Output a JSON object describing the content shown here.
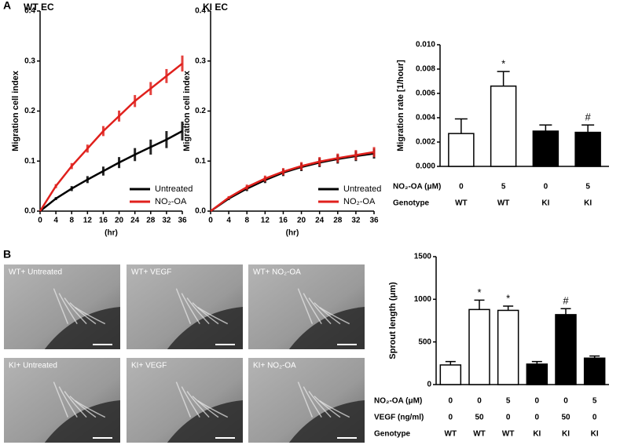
{
  "panel_labels": [
    "A",
    "B"
  ],
  "chart_data": [
    {
      "type": "line",
      "title": "WT EC",
      "ylabel": "Migration cell index",
      "xlabel": "(hr)",
      "x": [
        0,
        4,
        8,
        12,
        16,
        20,
        24,
        28,
        32,
        36
      ],
      "series": [
        {
          "name": "Untreated",
          "color": "#000000",
          "values": [
            0,
            0.025,
            0.045,
            0.063,
            0.08,
            0.097,
            0.113,
            0.128,
            0.143,
            0.16
          ],
          "errors": [
            0,
            0.003,
            0.005,
            0.007,
            0.009,
            0.011,
            0.013,
            0.015,
            0.017,
            0.019
          ]
        },
        {
          "name": "NO₂-OA",
          "color": "#e0201c",
          "values": [
            0,
            0.05,
            0.09,
            0.125,
            0.16,
            0.19,
            0.22,
            0.245,
            0.27,
            0.295
          ],
          "errors": [
            0,
            0.004,
            0.006,
            0.008,
            0.01,
            0.011,
            0.012,
            0.013,
            0.014,
            0.016
          ]
        }
      ],
      "xlim": [
        0,
        36
      ],
      "xticks": [
        0,
        4,
        8,
        12,
        16,
        20,
        24,
        28,
        32,
        36
      ],
      "ylim": [
        0,
        0.4
      ],
      "yticks": [
        {
          "value": 0,
          "label": "0.0"
        },
        0.1,
        0.2,
        0.3,
        0.4
      ],
      "legend": "lower right"
    },
    {
      "type": "line",
      "title": "KI EC",
      "ylabel": "Migration cell index",
      "xlabel": "(hr)",
      "x": [
        0,
        4,
        8,
        12,
        16,
        20,
        24,
        28,
        32,
        36
      ],
      "series": [
        {
          "name": "Untreated",
          "color": "#000000",
          "values": [
            0,
            0.025,
            0.045,
            0.062,
            0.077,
            0.088,
            0.097,
            0.104,
            0.11,
            0.115
          ],
          "errors": [
            0,
            0.003,
            0.005,
            0.006,
            0.007,
            0.008,
            0.009,
            0.009,
            0.01,
            0.01
          ]
        },
        {
          "name": "NO₂-OA",
          "color": "#e0201c",
          "values": [
            0,
            0.027,
            0.048,
            0.065,
            0.079,
            0.09,
            0.099,
            0.106,
            0.112,
            0.118
          ],
          "errors": [
            0,
            0.003,
            0.005,
            0.006,
            0.007,
            0.008,
            0.009,
            0.009,
            0.01,
            0.01
          ]
        }
      ],
      "xlim": [
        0,
        36
      ],
      "xticks": [
        0,
        4,
        8,
        12,
        16,
        20,
        24,
        28,
        32,
        36
      ],
      "ylim": [
        0,
        0.4
      ],
      "yticks": [
        {
          "value": 0,
          "label": "0.0"
        },
        0.1,
        0.2,
        0.3,
        0.4
      ],
      "legend": "lower right"
    },
    {
      "type": "bar",
      "ylabel": "Migration rate [1/hour]",
      "values": [
        0.0027,
        0.0066,
        0.0029,
        0.0028
      ],
      "errors": [
        0.0012,
        0.0012,
        0.0005,
        0.0006
      ],
      "colors": [
        "#ffffff",
        "#ffffff",
        "#000000",
        "#000000"
      ],
      "annotations": [
        null,
        "*",
        null,
        "#"
      ],
      "ylim": [
        0,
        0.01
      ],
      "yticks": [
        {
          "value": 0,
          "label": "0.000"
        },
        {
          "value": 0.002,
          "label": "0.002"
        },
        {
          "value": 0.004,
          "label": "0.004"
        },
        {
          "value": 0.006,
          "label": "0.006"
        },
        {
          "value": 0.008,
          "label": "0.008"
        },
        {
          "value": 0.01,
          "label": "0.010"
        }
      ],
      "table": [
        {
          "label": "NO₂-OA (μM)",
          "values": [
            0,
            5,
            0,
            5
          ]
        },
        {
          "label": "Genotype",
          "values": [
            "WT",
            "WT",
            "KI",
            "KI"
          ]
        }
      ]
    },
    {
      "type": "bar",
      "ylabel": "Sprout length (μm)",
      "values": [
        230,
        880,
        870,
        240,
        820,
        310
      ],
      "errors": [
        40,
        110,
        50,
        30,
        70,
        25
      ],
      "colors": [
        "#ffffff",
        "#ffffff",
        "#ffffff",
        "#000000",
        "#000000",
        "#000000"
      ],
      "annotations": [
        null,
        "*",
        "*",
        null,
        "#",
        null
      ],
      "ylim": [
        0,
        1500
      ],
      "yticks": [
        0,
        500,
        1000,
        1500
      ],
      "table": [
        {
          "label": "NO₂-OA (μM)",
          "values": [
            0,
            0,
            5,
            0,
            0,
            5
          ]
        },
        {
          "label": "VEGF (ng/ml)",
          "values": [
            0,
            50,
            0,
            0,
            50,
            0
          ]
        },
        {
          "label": "Genotype",
          "values": [
            "WT",
            "WT",
            "WT",
            "KI",
            "KI",
            "KI"
          ]
        }
      ]
    }
  ],
  "micrographs": [
    "WT+ Untreated",
    "WT+ VEGF",
    "WT+ NO₂-OA",
    "KI+ Untreated",
    "KI+ VEGF",
    "KI+ NO₂-OA"
  ]
}
